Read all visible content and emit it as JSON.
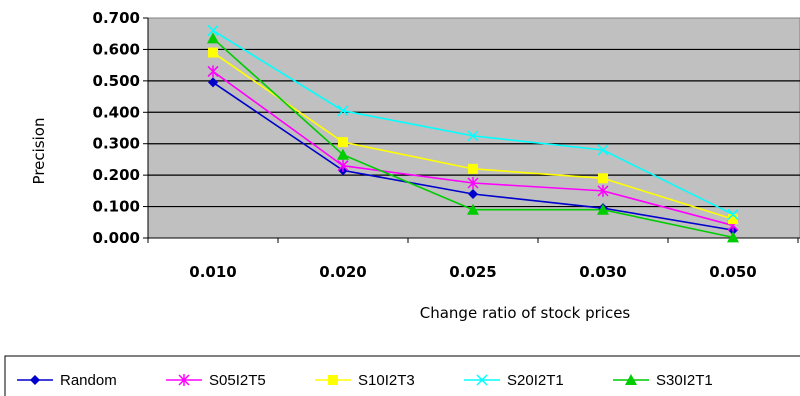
{
  "chart_data": {
    "type": "line",
    "title": "",
    "xlabel": "Change ratio of stock prices",
    "ylabel": "Precision",
    "categories": [
      "0.010",
      "0.020",
      "0.025",
      "0.030",
      "0.050"
    ],
    "ylim": [
      0,
      0.7
    ],
    "yticks": [
      "0.000",
      "0.100",
      "0.200",
      "0.300",
      "0.400",
      "0.500",
      "0.600",
      "0.700"
    ],
    "grid": true,
    "plot_background": "#c0c0c0",
    "legend_position": "bottom",
    "series": [
      {
        "name": "Random",
        "color": "#0000cc",
        "marker": "diamond",
        "values": [
          0.495,
          0.215,
          0.14,
          0.095,
          0.025
        ]
      },
      {
        "name": "S05I2T5",
        "color": "#ff00ff",
        "marker": "asterisk",
        "values": [
          0.53,
          0.23,
          0.175,
          0.15,
          0.04
        ]
      },
      {
        "name": "S10I2T3",
        "color": "#ffff00",
        "marker": "square",
        "values": [
          0.59,
          0.305,
          0.22,
          0.19,
          0.06
        ]
      },
      {
        "name": "S20I2T1",
        "color": "#00ffff",
        "marker": "x",
        "values": [
          0.66,
          0.405,
          0.325,
          0.28,
          0.075
        ]
      },
      {
        "name": "S30I2T1",
        "color": "#00cc00",
        "marker": "triangle",
        "values": [
          0.635,
          0.265,
          0.09,
          0.09,
          0.002
        ]
      }
    ]
  }
}
